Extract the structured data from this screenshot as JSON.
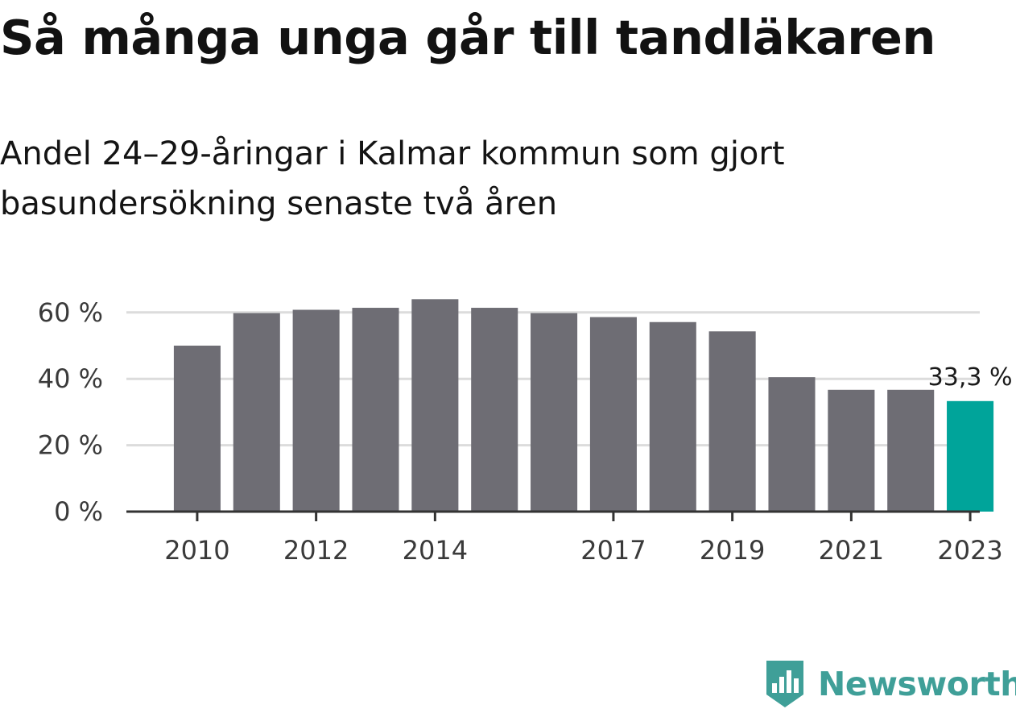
{
  "chart_data": {
    "type": "bar",
    "title": "Så många unga går till tandläkaren",
    "subtitle": "Andel 24–29-åringar i Kalmar kommun som gjort basundersökning senaste två åren",
    "xlabel": "",
    "ylabel": "",
    "x": [
      2010,
      2011,
      2012,
      2013,
      2014,
      2015,
      2016,
      2017,
      2018,
      2019,
      2020,
      2021,
      2022,
      2023
    ],
    "values": [
      50.0,
      59.8,
      60.8,
      61.4,
      64.0,
      61.4,
      59.8,
      58.6,
      57.1,
      54.3,
      40.5,
      36.7,
      36.7,
      33.3
    ],
    "xticks": [
      "2010",
      "2012",
      "2014",
      "2017",
      "2019",
      "2021",
      "2023"
    ],
    "yticks": [
      {
        "value": 0,
        "label": "0 %"
      },
      {
        "value": 20,
        "label": "20 %"
      },
      {
        "value": 40,
        "label": "40 %"
      },
      {
        "value": 60,
        "label": "60 %"
      }
    ],
    "ylim": [
      0,
      65
    ],
    "highlight": {
      "x": 2023,
      "label": "33,3 %"
    },
    "grid": true,
    "legend": "none",
    "colors": {
      "bar": "#6e6d74",
      "highlight": "#00a49a",
      "grid": "#dcdcdc",
      "axis": "#333333"
    }
  },
  "brand": {
    "name": "Newsworthy",
    "color": "#3f9f98"
  }
}
